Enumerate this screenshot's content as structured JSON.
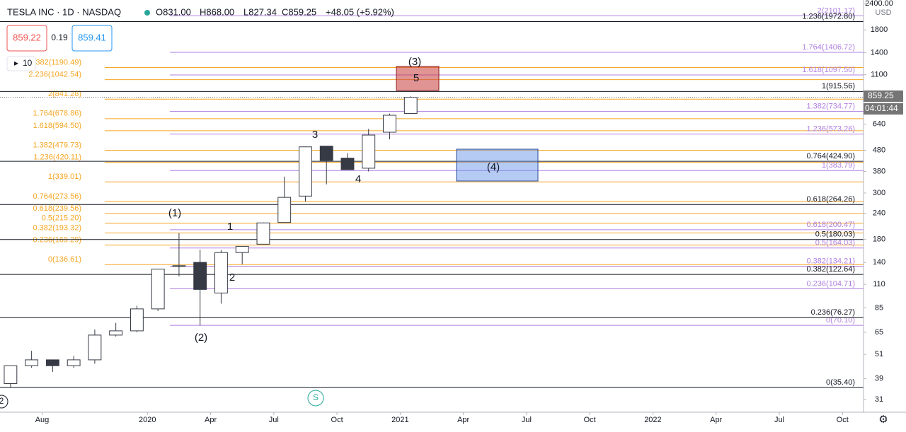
{
  "header": {
    "symbol": "TESLA INC · 1D · NASDAQ",
    "open": "O831.00",
    "high": "H868.00",
    "low": "L827.34",
    "close": "C859.25",
    "change": "+48.05 (+5.92%)",
    "bid": "859.22",
    "spread": "0.19",
    "ask": "859.41",
    "interval_count": "10"
  },
  "price_tag": "859.25",
  "countdown": "04:01:44",
  "currency": "USD",
  "session_marker": "S",
  "corner_label": "2",
  "chart_data": {
    "type": "candlestick",
    "log_scale": true,
    "xlim": [
      "2019-06",
      "2022-11"
    ],
    "xticks": [
      {
        "value": "2019-08",
        "label": "Aug"
      },
      {
        "value": "2020-01",
        "label": "2020"
      },
      {
        "value": "2020-04",
        "label": "Apr"
      },
      {
        "value": "2020-07",
        "label": "Jul"
      },
      {
        "value": "2020-10",
        "label": "Oct"
      },
      {
        "value": "2021-01",
        "label": "2021"
      },
      {
        "value": "2021-04",
        "label": "Apr"
      },
      {
        "value": "2021-07",
        "label": "Jul"
      },
      {
        "value": "2021-10",
        "label": "Oct"
      },
      {
        "value": "2022-01",
        "label": "2022"
      },
      {
        "value": "2022-04",
        "label": "Apr"
      },
      {
        "value": "2022-07",
        "label": "Jul"
      },
      {
        "value": "2022-10",
        "label": "Oct"
      }
    ],
    "ylim": [
      27,
      2500
    ],
    "yticks": [
      31,
      39,
      51,
      65,
      85,
      110,
      140,
      180,
      240,
      300,
      380,
      480,
      640,
      1100,
      1400,
      1800,
      {
        "value": 2400,
        "label": "2400.00"
      }
    ],
    "color": "#363a45",
    "x": [
      "2019-06",
      "2019-07",
      "2019-08",
      "2019-09",
      "2019-10",
      "2019-11",
      "2019-12",
      "2020-01",
      "2020-02",
      "2020-03",
      "2020-04",
      "2020-05",
      "2020-06",
      "2020-07",
      "2020-08",
      "2020-09",
      "2020-10",
      "2020-11",
      "2020-12",
      "2021-01"
    ],
    "open": [
      37,
      45,
      48,
      45,
      48,
      63,
      66,
      84,
      135,
      140,
      100,
      156,
      171,
      217,
      290,
      502,
      440,
      394,
      585,
      719
    ],
    "high": [
      45,
      53,
      48,
      50,
      67,
      72,
      87,
      130,
      193,
      161,
      160,
      167,
      217,
      359,
      500,
      502,
      465,
      607,
      718,
      868
    ],
    "low": [
      35.4,
      44,
      42,
      44,
      46,
      62,
      65,
      82,
      120,
      70,
      89,
      137,
      172,
      216,
      273,
      330,
      400,
      380,
      541,
      717
    ],
    "close": [
      45,
      48,
      45,
      48,
      63,
      66,
      84,
      130,
      134,
      104,
      156,
      167,
      216,
      286,
      498,
      429,
      388,
      567,
      705,
      859
    ],
    "fib_sets": [
      {
        "color": "#f5a623",
        "levels": [
          {
            "value": 136.61,
            "label": "0(136.61)"
          },
          {
            "value": 169.29,
            "label": "0.236(169.29)"
          },
          {
            "value": 193.32,
            "label": "0.382(193.32)"
          },
          {
            "value": 215.2,
            "label": "0.5(215.20)"
          },
          {
            "value": 239.56,
            "label": "0.618(239.56)"
          },
          {
            "value": 273.56,
            "label": "0.764(273.56)"
          },
          {
            "value": 339.01,
            "label": "1(339.01)"
          },
          {
            "value": 420.11,
            "label": "1.236(420.11)"
          },
          {
            "value": 479.73,
            "label": "1.382(479.73)"
          },
          {
            "value": 594.5,
            "label": "1.618(594.50)"
          },
          {
            "value": 678.86,
            "label": "1.764(678.86)"
          },
          {
            "value": 841.28,
            "label": "2(841.28)"
          },
          {
            "value": 1042.54,
            "label": "2.236(1042.54)"
          },
          {
            "value": 1190.49,
            "label": "2.382(1190.49)"
          }
        ]
      },
      {
        "color": "#b07fe0",
        "levels": [
          {
            "value": 70.1,
            "label": "0(70.10)"
          },
          {
            "value": 104.71,
            "label": "0.236(104.71)"
          },
          {
            "value": 134.21,
            "label": "0.382(134.21)"
          },
          {
            "value": 164.03,
            "label": "0.5(164.03)"
          },
          {
            "value": 200.47,
            "label": "0.618(200.47)"
          },
          {
            "value": 383.79,
            "label": "1(383.79)"
          },
          {
            "value": 573.26,
            "label": "1.236(573.26)"
          },
          {
            "value": 734.77,
            "label": "1.382(734.77)"
          },
          {
            "value": 1097.5,
            "label": "1.618(1097.50)"
          },
          {
            "value": 1406.72,
            "label": "1.764(1406.72)"
          },
          {
            "value": 2101.17,
            "label": "2(2101.17)"
          }
        ]
      },
      {
        "color": "#131722",
        "levels": [
          {
            "value": 35.4,
            "label": "0(35.40)"
          },
          {
            "value": 76.27,
            "label": "0.236(76.27)"
          },
          {
            "value": 122.64,
            "label": "0.382(122.64)"
          },
          {
            "value": 180.03,
            "label": "0.5(180.03)"
          },
          {
            "value": 264.26,
            "label": "0.618(264.26)"
          },
          {
            "value": 424.9,
            "label": "0.764(424.90)"
          },
          {
            "value": 915.56,
            "label": "1(915.56)"
          },
          {
            "value": 1972.8,
            "label": "1.236(1972.80)"
          }
        ]
      }
    ],
    "wave_labels": [
      "(1)",
      "(2)",
      "1",
      "2",
      "3",
      "4",
      "(3)",
      "5",
      "(4)"
    ]
  }
}
